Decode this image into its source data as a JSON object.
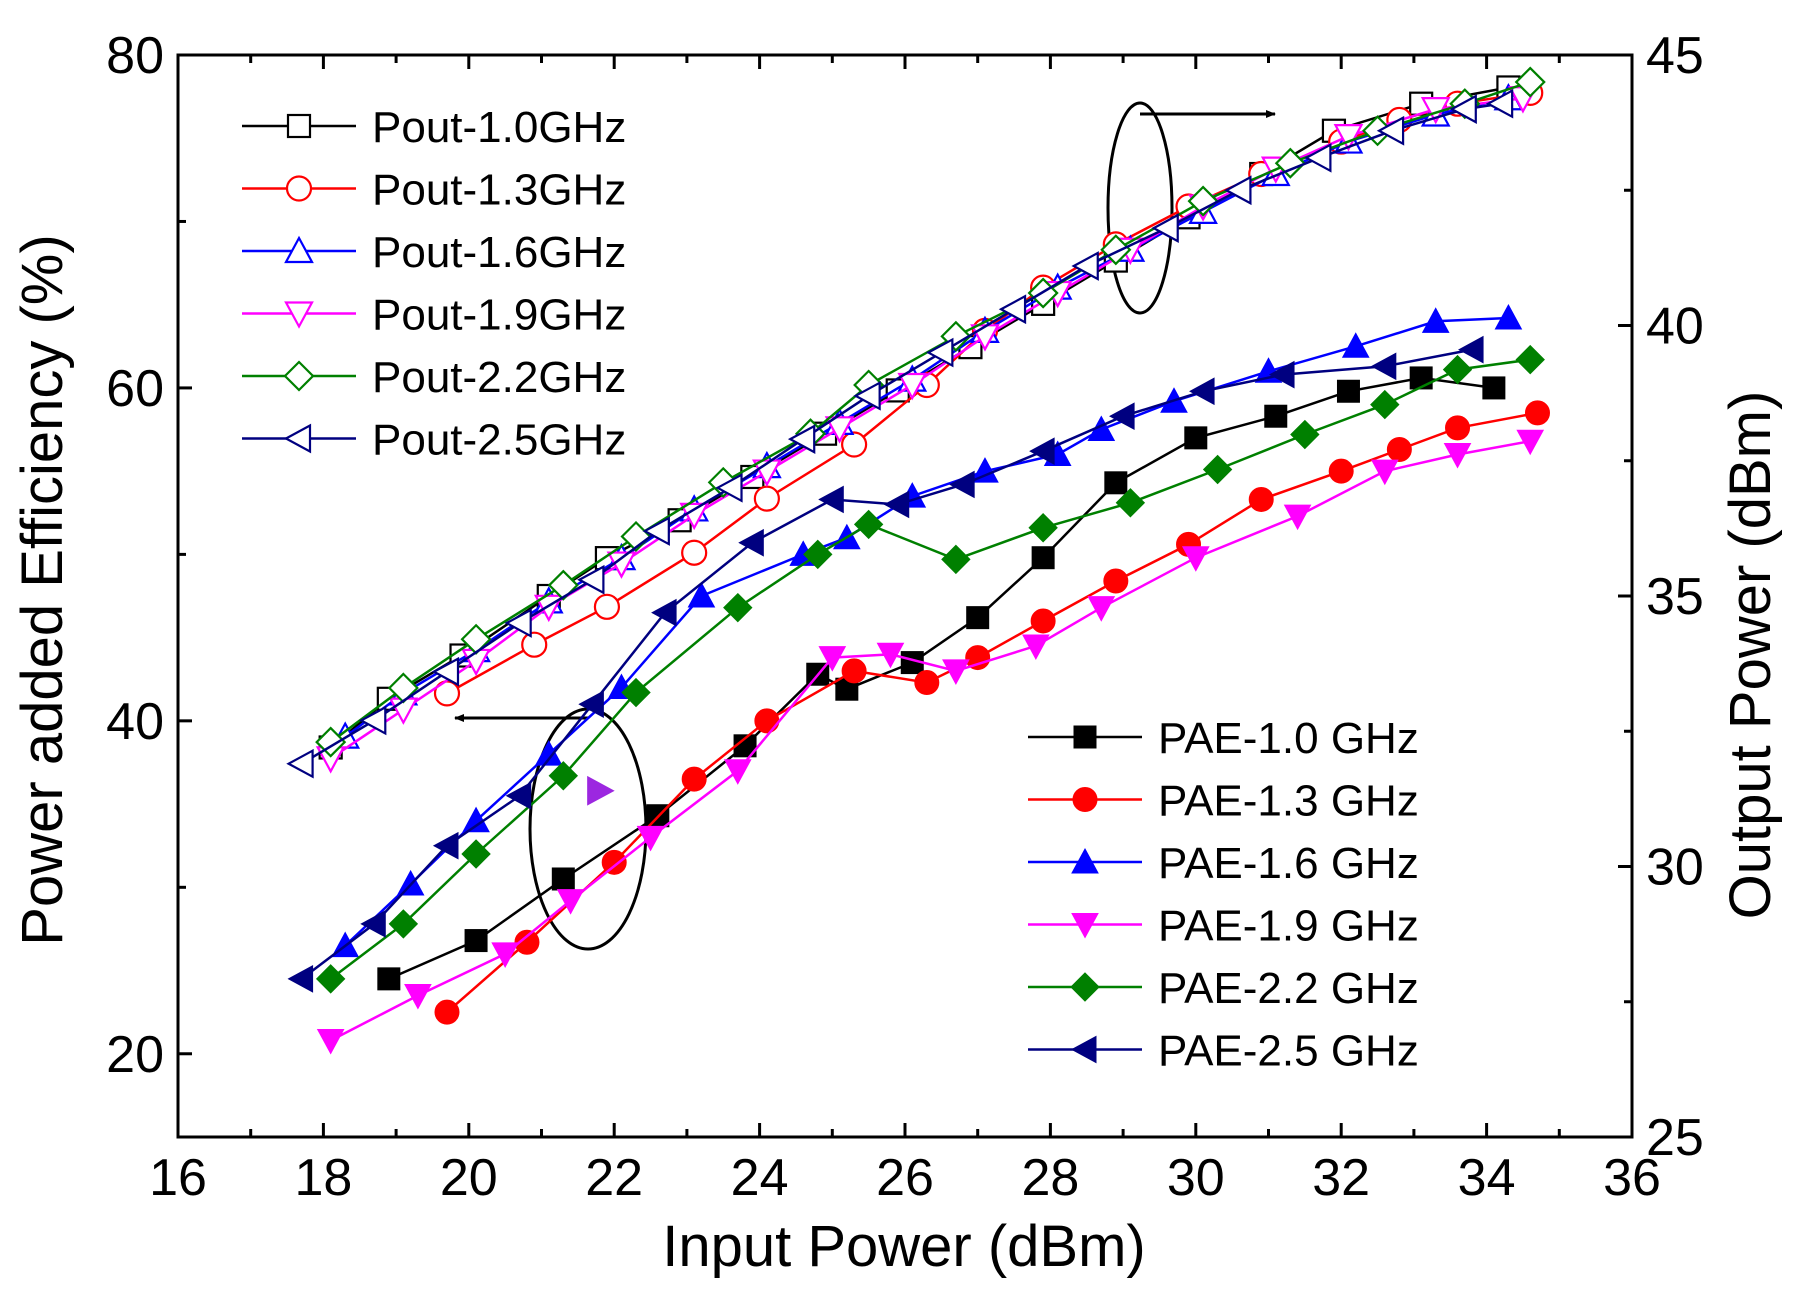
{
  "chart_data": {
    "type": "line",
    "xlabel": "Input Power (dBm)",
    "ylabel_left": "Power added Efficiency (%)",
    "ylabel_right": "Output Power (dBm)",
    "xlim": [
      16,
      36
    ],
    "ylim_left": [
      15,
      80
    ],
    "ylim_right": [
      25,
      45
    ],
    "x_ticks": [
      16,
      18,
      20,
      22,
      24,
      26,
      28,
      30,
      32,
      34,
      36
    ],
    "y_ticks_left": [
      20,
      40,
      60,
      80
    ],
    "y_ticks_right": [
      25,
      30,
      35,
      40,
      45
    ],
    "grid": false,
    "annotations": [
      {
        "kind": "ellipse-arrow",
        "points_to": "right axis (Output Power)"
      },
      {
        "kind": "ellipse-arrow",
        "points_to": "left axis (Power added Efficiency)"
      }
    ],
    "series_pout": [
      {
        "name": "Pout-1.0GHz",
        "axis": "right",
        "color": "#000000",
        "marker": "square-open",
        "x": [
          18.1,
          18.9,
          19.9,
          21.1,
          21.9,
          22.9,
          23.9,
          24.9,
          25.9,
          26.9,
          27.9,
          28.9,
          29.9,
          30.9,
          31.9,
          33.1,
          34.3
        ],
        "y": [
          32.2,
          33.1,
          33.9,
          35.0,
          35.7,
          36.4,
          37.2,
          38.0,
          38.8,
          39.6,
          40.4,
          41.2,
          42.0,
          42.8,
          43.6,
          44.1,
          44.4
        ]
      },
      {
        "name": "Pout-1.3GHz",
        "axis": "right",
        "color": "#ff0000",
        "marker": "circle-open",
        "x": [
          19.7,
          20.9,
          21.9,
          23.1,
          24.1,
          25.3,
          26.3,
          27.1,
          27.9,
          28.9,
          29.9,
          30.9,
          32.0,
          32.8,
          33.6,
          34.6
        ],
        "y": [
          33.2,
          34.1,
          34.8,
          35.8,
          36.8,
          37.8,
          38.9,
          39.9,
          40.7,
          41.5,
          42.2,
          42.8,
          43.4,
          43.8,
          44.1,
          44.3
        ]
      },
      {
        "name": "Pout-1.6GHz",
        "axis": "right",
        "color": "#0000ff",
        "marker": "triangle-up-open",
        "x": [
          18.3,
          19.1,
          20.1,
          21.1,
          22.1,
          23.1,
          24.1,
          25.1,
          26.1,
          27.1,
          28.1,
          29.1,
          30.1,
          31.1,
          32.1,
          33.3,
          34.3
        ],
        "y": [
          32.4,
          33.2,
          34.0,
          34.9,
          35.7,
          36.6,
          37.4,
          38.2,
          39.0,
          39.9,
          40.7,
          41.4,
          42.1,
          42.8,
          43.4,
          43.9,
          44.2
        ]
      },
      {
        "name": "Pout-1.9GHz",
        "axis": "right",
        "color": "#ff00ff",
        "marker": "triangle-down-open",
        "x": [
          18.1,
          19.1,
          20.1,
          21.1,
          22.1,
          23.1,
          24.1,
          25.1,
          26.1,
          27.1,
          28.1,
          29.1,
          30.1,
          31.1,
          32.1,
          33.3,
          34.5
        ],
        "y": [
          32.0,
          32.9,
          33.8,
          34.8,
          35.6,
          36.5,
          37.3,
          38.1,
          38.9,
          39.8,
          40.6,
          41.4,
          42.2,
          42.9,
          43.5,
          44.0,
          44.2
        ]
      },
      {
        "name": "Pout-2.2GHz",
        "axis": "right",
        "color": "#008000",
        "marker": "diamond-open",
        "x": [
          18.1,
          19.1,
          20.1,
          21.3,
          22.3,
          23.5,
          24.7,
          25.5,
          26.7,
          27.9,
          28.9,
          30.1,
          31.3,
          32.5,
          33.7,
          34.6
        ],
        "y": [
          32.3,
          33.3,
          34.2,
          35.2,
          36.1,
          37.1,
          38.0,
          38.9,
          39.8,
          40.6,
          41.4,
          42.3,
          43.0,
          43.6,
          44.1,
          44.5
        ]
      },
      {
        "name": "Pout-2.5GHz",
        "axis": "right",
        "color": "#000080",
        "marker": "triangle-left-open",
        "x": [
          17.7,
          18.7,
          19.7,
          20.7,
          21.7,
          22.6,
          23.6,
          24.6,
          25.5,
          26.5,
          27.5,
          28.5,
          29.6,
          30.6,
          31.7,
          32.7,
          33.7,
          34.2
        ],
        "y": [
          31.9,
          32.7,
          33.6,
          34.5,
          35.3,
          36.2,
          37.0,
          37.9,
          38.7,
          39.5,
          40.3,
          41.1,
          41.8,
          42.5,
          43.1,
          43.6,
          44.0,
          44.1
        ]
      }
    ],
    "series_pae": [
      {
        "name": "PAE-1.0 GHz",
        "axis": "left",
        "color": "#000000",
        "marker": "square-filled",
        "x": [
          18.9,
          20.1,
          21.3,
          22.6,
          23.8,
          24.8,
          25.2,
          26.1,
          27.0,
          27.9,
          28.9,
          30.0,
          31.1,
          32.1,
          33.1,
          34.1
        ],
        "y": [
          24.5,
          26.8,
          30.5,
          34.3,
          38.5,
          42.8,
          41.9,
          43.5,
          46.2,
          49.8,
          54.3,
          57.0,
          58.3,
          59.8,
          60.6,
          60.0
        ]
      },
      {
        "name": "PAE-1.3 GHz",
        "axis": "left",
        "color": "#ff0000",
        "marker": "circle-filled",
        "x": [
          19.7,
          20.8,
          22.0,
          23.1,
          24.1,
          25.3,
          26.3,
          27.0,
          27.9,
          28.9,
          29.9,
          30.9,
          32.0,
          32.8,
          33.6,
          34.7
        ],
        "y": [
          22.5,
          26.7,
          31.5,
          36.5,
          40.0,
          43.0,
          42.3,
          43.8,
          46.0,
          48.4,
          50.6,
          53.3,
          55.0,
          56.3,
          57.6,
          58.5
        ]
      },
      {
        "name": "PAE-1.6 GHz",
        "axis": "left",
        "color": "#0000ff",
        "marker": "triangle-up-filled",
        "x": [
          18.3,
          19.2,
          20.1,
          21.1,
          22.1,
          23.2,
          24.6,
          25.2,
          26.1,
          27.1,
          28.1,
          28.7,
          29.7,
          31.0,
          32.2,
          33.3,
          34.3
        ],
        "y": [
          26.5,
          30.2,
          34.0,
          38.0,
          42.0,
          47.5,
          50.0,
          51.0,
          53.5,
          55.0,
          56.0,
          57.5,
          59.2,
          61.0,
          62.5,
          64.0,
          64.2
        ]
      },
      {
        "name": "PAE-1.9 GHz",
        "axis": "left",
        "color": "#ff00ff",
        "marker": "triangle-down-filled",
        "x": [
          18.1,
          19.3,
          20.5,
          21.4,
          22.5,
          23.7,
          25.0,
          25.8,
          26.7,
          27.8,
          28.7,
          30.0,
          31.4,
          32.6,
          33.6,
          34.6
        ],
        "y": [
          20.8,
          23.5,
          26.0,
          29.2,
          33.0,
          37.0,
          43.8,
          44.0,
          43.0,
          44.5,
          46.8,
          49.8,
          52.3,
          55.0,
          56.0,
          56.8
        ]
      },
      {
        "name": "PAE-2.2 GHz",
        "axis": "left",
        "color": "#008000",
        "marker": "diamond-filled",
        "x": [
          18.1,
          19.1,
          20.1,
          21.3,
          22.3,
          23.7,
          24.8,
          25.5,
          26.7,
          27.9,
          29.1,
          30.3,
          31.5,
          32.6,
          33.6,
          34.6
        ],
        "y": [
          24.5,
          27.8,
          32.0,
          36.7,
          41.7,
          46.8,
          50.0,
          51.8,
          49.7,
          51.6,
          53.1,
          55.1,
          57.2,
          59.0,
          61.1,
          61.7
        ]
      },
      {
        "name": "PAE-2.5 GHz",
        "axis": "left",
        "color": "#000080",
        "marker": "triangle-left-filled",
        "x": [
          17.7,
          18.7,
          19.7,
          20.7,
          21.7,
          22.7,
          23.9,
          25.0,
          25.9,
          26.8,
          27.9,
          29.0,
          30.1,
          31.2,
          32.6,
          33.8
        ],
        "y": [
          24.5,
          27.8,
          32.5,
          35.5,
          41.0,
          46.5,
          50.7,
          53.3,
          53.0,
          54.2,
          56.2,
          58.3,
          59.8,
          60.8,
          61.3,
          62.3
        ]
      }
    ],
    "extra_marker": {
      "x": 21.8,
      "y": 35.8,
      "axis": "left",
      "color": "#9c27e0",
      "marker": "triangle-right-filled"
    }
  }
}
